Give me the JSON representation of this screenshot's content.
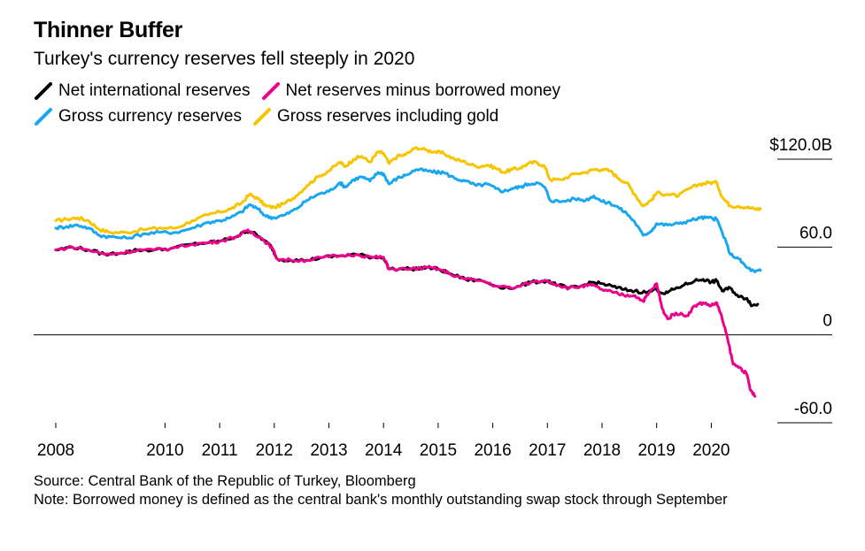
{
  "title": "Thinner Buffer",
  "subtitle": "Turkey's currency reserves fell steeply in 2020",
  "source": "Source: Central Bank of the Republic of Turkey, Bloomberg",
  "note": "Note: Borrowed money is defined as the central bank's monthly outstanding swap stock through September",
  "legend": [
    {
      "label": "Net international reserves",
      "color": "#000000"
    },
    {
      "label": "Net reserves minus borrowed money",
      "color": "#ec008c"
    },
    {
      "label": "Gross currency reserves",
      "color": "#1ba7ee"
    },
    {
      "label": "Gross reserves including gold",
      "color": "#f7c500"
    }
  ],
  "chart_data": {
    "type": "line",
    "title": "Thinner Buffer",
    "subtitle": "Turkey's currency reserves fell steeply in 2020",
    "xlim": [
      2008.0,
      2020.95
    ],
    "ylim": [
      -60,
      120
    ],
    "x_ticks": [
      {
        "value": 2008.0,
        "label": "2008"
      },
      {
        "value": 2010.0,
        "label": "2010"
      },
      {
        "value": 2011.0,
        "label": "2011"
      },
      {
        "value": 2012.0,
        "label": "2012"
      },
      {
        "value": 2013.0,
        "label": "2013"
      },
      {
        "value": 2014.0,
        "label": "2014"
      },
      {
        "value": 2015.0,
        "label": "2015"
      },
      {
        "value": 2016.0,
        "label": "2016"
      },
      {
        "value": 2017.0,
        "label": "2017"
      },
      {
        "value": 2018.0,
        "label": "2018"
      },
      {
        "value": 2019.0,
        "label": "2019"
      },
      {
        "value": 2020.0,
        "label": "2020"
      }
    ],
    "y_ticks": [
      {
        "value": 120,
        "label": "$120.0B"
      },
      {
        "value": 60,
        "label": "60.0"
      },
      {
        "value": 0,
        "label": "0"
      },
      {
        "value": -60,
        "label": "-60.0"
      }
    ],
    "series": [
      {
        "name": "Gross reserves including gold",
        "color": "#f7c500",
        "points": [
          [
            2008.0,
            78
          ],
          [
            2008.2,
            79
          ],
          [
            2008.4,
            80
          ],
          [
            2008.6,
            78
          ],
          [
            2008.8,
            72
          ],
          [
            2009.0,
            70
          ],
          [
            2009.3,
            70
          ],
          [
            2009.6,
            72
          ],
          [
            2009.9,
            73
          ],
          [
            2010.2,
            73
          ],
          [
            2010.5,
            78
          ],
          [
            2010.8,
            82
          ],
          [
            2011.0,
            84
          ],
          [
            2011.2,
            86
          ],
          [
            2011.4,
            90
          ],
          [
            2011.55,
            96
          ],
          [
            2011.7,
            93
          ],
          [
            2011.85,
            88
          ],
          [
            2012.0,
            87
          ],
          [
            2012.2,
            90
          ],
          [
            2012.4,
            95
          ],
          [
            2012.6,
            102
          ],
          [
            2012.8,
            108
          ],
          [
            2013.0,
            112
          ],
          [
            2013.2,
            118
          ],
          [
            2013.3,
            115
          ],
          [
            2013.45,
            120
          ],
          [
            2013.6,
            122
          ],
          [
            2013.75,
            118
          ],
          [
            2013.9,
            125
          ],
          [
            2014.0,
            124
          ],
          [
            2014.1,
            117
          ],
          [
            2014.25,
            122
          ],
          [
            2014.4,
            123
          ],
          [
            2014.6,
            128
          ],
          [
            2014.8,
            126
          ],
          [
            2014.95,
            125
          ],
          [
            2015.1,
            124
          ],
          [
            2015.3,
            120
          ],
          [
            2015.5,
            118
          ],
          [
            2015.7,
            115
          ],
          [
            2015.9,
            116
          ],
          [
            2016.05,
            114
          ],
          [
            2016.2,
            111
          ],
          [
            2016.35,
            113
          ],
          [
            2016.5,
            114
          ],
          [
            2016.65,
            117
          ],
          [
            2016.8,
            118
          ],
          [
            2016.95,
            115
          ],
          [
            2017.05,
            106
          ],
          [
            2017.25,
            106
          ],
          [
            2017.5,
            110
          ],
          [
            2017.7,
            111
          ],
          [
            2017.85,
            113
          ],
          [
            2018.0,
            113
          ],
          [
            2018.15,
            112
          ],
          [
            2018.3,
            107
          ],
          [
            2018.45,
            104
          ],
          [
            2018.6,
            96
          ],
          [
            2018.75,
            88
          ],
          [
            2018.9,
            92
          ],
          [
            2019.0,
            97
          ],
          [
            2019.2,
            96
          ],
          [
            2019.4,
            95
          ],
          [
            2019.6,
            100
          ],
          [
            2019.8,
            103
          ],
          [
            2019.95,
            104
          ],
          [
            2020.1,
            104
          ],
          [
            2020.2,
            94
          ],
          [
            2020.35,
            88
          ],
          [
            2020.5,
            88
          ],
          [
            2020.65,
            87
          ],
          [
            2020.8,
            86
          ],
          [
            2020.9,
            86
          ]
        ]
      },
      {
        "name": "Gross currency reserves",
        "color": "#1ba7ee",
        "points": [
          [
            2008.0,
            73
          ],
          [
            2008.2,
            74
          ],
          [
            2008.4,
            75
          ],
          [
            2008.6,
            73
          ],
          [
            2008.8,
            68
          ],
          [
            2009.0,
            67
          ],
          [
            2009.3,
            66
          ],
          [
            2009.6,
            69
          ],
          [
            2009.9,
            70
          ],
          [
            2010.2,
            70
          ],
          [
            2010.5,
            73
          ],
          [
            2010.8,
            77
          ],
          [
            2011.0,
            78
          ],
          [
            2011.2,
            80
          ],
          [
            2011.4,
            84
          ],
          [
            2011.55,
            89
          ],
          [
            2011.7,
            86
          ],
          [
            2011.85,
            81
          ],
          [
            2012.0,
            80
          ],
          [
            2012.2,
            82
          ],
          [
            2012.4,
            86
          ],
          [
            2012.6,
            92
          ],
          [
            2012.8,
            96
          ],
          [
            2013.0,
            98
          ],
          [
            2013.2,
            104
          ],
          [
            2013.3,
            101
          ],
          [
            2013.45,
            106
          ],
          [
            2013.6,
            108
          ],
          [
            2013.75,
            105
          ],
          [
            2013.9,
            111
          ],
          [
            2014.0,
            110
          ],
          [
            2014.1,
            103
          ],
          [
            2014.25,
            107
          ],
          [
            2014.4,
            109
          ],
          [
            2014.6,
            113
          ],
          [
            2014.8,
            112
          ],
          [
            2014.95,
            111
          ],
          [
            2015.1,
            111
          ],
          [
            2015.3,
            107
          ],
          [
            2015.5,
            105
          ],
          [
            2015.7,
            102
          ],
          [
            2015.9,
            103
          ],
          [
            2016.05,
            100
          ],
          [
            2016.2,
            98
          ],
          [
            2016.35,
            100
          ],
          [
            2016.5,
            101
          ],
          [
            2016.65,
            103
          ],
          [
            2016.8,
            104
          ],
          [
            2016.95,
            101
          ],
          [
            2017.05,
            92
          ],
          [
            2017.25,
            91
          ],
          [
            2017.5,
            93
          ],
          [
            2017.7,
            92
          ],
          [
            2017.85,
            95
          ],
          [
            2018.0,
            91
          ],
          [
            2018.15,
            90
          ],
          [
            2018.3,
            87
          ],
          [
            2018.45,
            83
          ],
          [
            2018.6,
            77
          ],
          [
            2018.75,
            68
          ],
          [
            2018.9,
            71
          ],
          [
            2019.0,
            76
          ],
          [
            2019.2,
            75
          ],
          [
            2019.4,
            76
          ],
          [
            2019.6,
            78
          ],
          [
            2019.8,
            80
          ],
          [
            2019.95,
            80
          ],
          [
            2020.1,
            79
          ],
          [
            2020.2,
            70
          ],
          [
            2020.35,
            55
          ],
          [
            2020.5,
            52
          ],
          [
            2020.65,
            46
          ],
          [
            2020.8,
            43
          ],
          [
            2020.9,
            44
          ]
        ]
      },
      {
        "name": "Net international reserves",
        "color": "#000000",
        "points": [
          [
            2008.0,
            58
          ],
          [
            2008.3,
            60
          ],
          [
            2008.6,
            58
          ],
          [
            2008.9,
            55
          ],
          [
            2009.2,
            56
          ],
          [
            2009.5,
            58
          ],
          [
            2009.8,
            58
          ],
          [
            2010.1,
            59
          ],
          [
            2010.5,
            62
          ],
          [
            2010.8,
            63
          ],
          [
            2011.0,
            64
          ],
          [
            2011.3,
            67
          ],
          [
            2011.5,
            71
          ],
          [
            2011.6,
            70
          ],
          [
            2011.8,
            65
          ],
          [
            2011.95,
            60
          ],
          [
            2012.05,
            52
          ],
          [
            2012.3,
            51
          ],
          [
            2012.6,
            51
          ],
          [
            2012.9,
            53
          ],
          [
            2013.2,
            54
          ],
          [
            2013.5,
            55
          ],
          [
            2013.8,
            53
          ],
          [
            2014.0,
            53
          ],
          [
            2014.1,
            45
          ],
          [
            2014.5,
            45
          ],
          [
            2014.8,
            46
          ],
          [
            2015.0,
            45
          ],
          [
            2015.2,
            42
          ],
          [
            2015.5,
            38
          ],
          [
            2015.8,
            37
          ],
          [
            2016.1,
            33
          ],
          [
            2016.4,
            32
          ],
          [
            2016.7,
            36
          ],
          [
            2017.0,
            37
          ],
          [
            2017.2,
            34
          ],
          [
            2017.4,
            32
          ],
          [
            2017.6,
            33
          ],
          [
            2017.8,
            36
          ],
          [
            2018.0,
            35
          ],
          [
            2018.2,
            33
          ],
          [
            2018.4,
            31
          ],
          [
            2018.6,
            30
          ],
          [
            2018.8,
            29
          ],
          [
            2019.0,
            31
          ],
          [
            2019.15,
            28
          ],
          [
            2019.3,
            31
          ],
          [
            2019.5,
            34
          ],
          [
            2019.7,
            37
          ],
          [
            2019.85,
            38
          ],
          [
            2020.0,
            36
          ],
          [
            2020.1,
            37
          ],
          [
            2020.2,
            30
          ],
          [
            2020.35,
            32
          ],
          [
            2020.5,
            26
          ],
          [
            2020.65,
            25
          ],
          [
            2020.75,
            20
          ],
          [
            2020.85,
            21
          ]
        ]
      },
      {
        "name": "Net reserves minus borrowed money",
        "color": "#ec008c",
        "points": [
          [
            2008.0,
            58
          ],
          [
            2008.3,
            60
          ],
          [
            2008.6,
            58
          ],
          [
            2008.9,
            55
          ],
          [
            2009.2,
            56
          ],
          [
            2009.5,
            58
          ],
          [
            2009.8,
            58
          ],
          [
            2010.1,
            59
          ],
          [
            2010.5,
            62
          ],
          [
            2010.8,
            63
          ],
          [
            2011.0,
            64
          ],
          [
            2011.3,
            67
          ],
          [
            2011.5,
            71
          ],
          [
            2011.6,
            70
          ],
          [
            2011.8,
            65
          ],
          [
            2011.95,
            60
          ],
          [
            2012.05,
            52
          ],
          [
            2012.3,
            51
          ],
          [
            2012.6,
            51
          ],
          [
            2012.9,
            53
          ],
          [
            2013.2,
            54
          ],
          [
            2013.5,
            55
          ],
          [
            2013.8,
            53
          ],
          [
            2014.0,
            53
          ],
          [
            2014.1,
            45
          ],
          [
            2014.5,
            45
          ],
          [
            2014.8,
            46
          ],
          [
            2015.0,
            45
          ],
          [
            2015.2,
            42
          ],
          [
            2015.5,
            38
          ],
          [
            2015.8,
            37
          ],
          [
            2016.1,
            33
          ],
          [
            2016.4,
            32
          ],
          [
            2016.7,
            36
          ],
          [
            2017.0,
            37
          ],
          [
            2017.2,
            34
          ],
          [
            2017.4,
            32
          ],
          [
            2017.6,
            33
          ],
          [
            2017.8,
            34
          ],
          [
            2018.0,
            31
          ],
          [
            2018.2,
            29
          ],
          [
            2018.4,
            27
          ],
          [
            2018.6,
            27
          ],
          [
            2018.75,
            23
          ],
          [
            2018.85,
            28
          ],
          [
            2019.0,
            35
          ],
          [
            2019.1,
            18
          ],
          [
            2019.2,
            11
          ],
          [
            2019.35,
            15
          ],
          [
            2019.55,
            13
          ],
          [
            2019.7,
            20
          ],
          [
            2019.85,
            22
          ],
          [
            2020.0,
            20
          ],
          [
            2020.1,
            22
          ],
          [
            2020.2,
            11
          ],
          [
            2020.3,
            -3
          ],
          [
            2020.4,
            -20
          ],
          [
            2020.55,
            -23
          ],
          [
            2020.65,
            -27
          ],
          [
            2020.72,
            -38
          ],
          [
            2020.8,
            -42
          ]
        ]
      }
    ]
  }
}
